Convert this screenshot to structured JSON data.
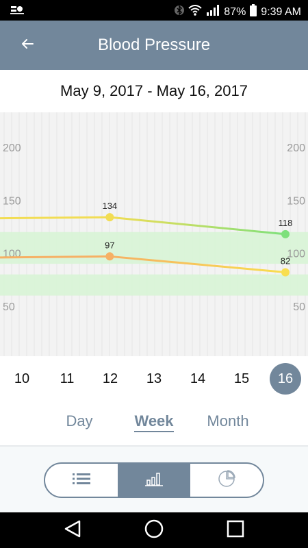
{
  "status_bar": {
    "battery": "87%",
    "time": "9:39 AM",
    "icons": [
      "app-notification-icon",
      "bluetooth-icon",
      "wifi-icon",
      "signal-icon",
      "battery-icon"
    ]
  },
  "header": {
    "title": "Blood Pressure",
    "back_icon": "arrow-left-icon"
  },
  "date_range": "May 9, 2017 - May 16, 2017",
  "chart_data": {
    "type": "line",
    "title": "",
    "xlabel": "",
    "ylabel": "",
    "x": [
      10,
      11,
      12,
      13,
      14,
      15,
      16
    ],
    "ylim": [
      0,
      240
    ],
    "y_ticks": [
      200,
      150,
      100,
      50
    ],
    "bands": [
      {
        "from": 90,
        "to": 120,
        "color": "#d8f4d6"
      },
      {
        "from": 60,
        "to": 80,
        "color": "#d8f4d6"
      }
    ],
    "series": [
      {
        "points": [
          {
            "x": 9.7,
            "y": 133,
            "label": ""
          },
          {
            "x": 12,
            "y": 134,
            "label": "134"
          },
          {
            "x": 16,
            "y": 118,
            "label": "118"
          }
        ],
        "colors": [
          "#f2dd54",
          "#f2dd54",
          "#7ee07c"
        ],
        "line_color": "#f2dd54"
      },
      {
        "points": [
          {
            "x": 9.7,
            "y": 96,
            "label": ""
          },
          {
            "x": 12,
            "y": 97,
            "label": "97"
          },
          {
            "x": 16,
            "y": 82,
            "label": "82"
          }
        ],
        "colors": [
          "#f6b064",
          "#f6b064",
          "#f8de4f"
        ],
        "line_color": "#f6b064"
      }
    ],
    "grid": true,
    "colors": {
      "grid": "#e5e5e5",
      "tick_text": "#9a9a9a",
      "axis_highlight": "#d0d0d0"
    }
  },
  "days": [
    {
      "label": "10",
      "active": false
    },
    {
      "label": "11",
      "active": false
    },
    {
      "label": "12",
      "active": false
    },
    {
      "label": "13",
      "active": false
    },
    {
      "label": "14",
      "active": false
    },
    {
      "label": "15",
      "active": false
    },
    {
      "label": "16",
      "active": true
    }
  ],
  "tabs": [
    {
      "label": "Day",
      "active": false
    },
    {
      "label": "Week",
      "active": true
    },
    {
      "label": "Month",
      "active": false
    }
  ],
  "segments": [
    {
      "name": "list-view",
      "icon": "list-icon",
      "active": false
    },
    {
      "name": "chart-view",
      "icon": "bar-chart-icon",
      "active": true
    },
    {
      "name": "pie-view",
      "icon": "pie-chart-icon",
      "active": false
    }
  ],
  "nav": {
    "back_icon": "triangle-back-icon",
    "home_icon": "circle-home-icon",
    "recents_icon": "square-recents-icon"
  },
  "colors": {
    "primary": "#72879b",
    "statusbar": "#000000"
  }
}
